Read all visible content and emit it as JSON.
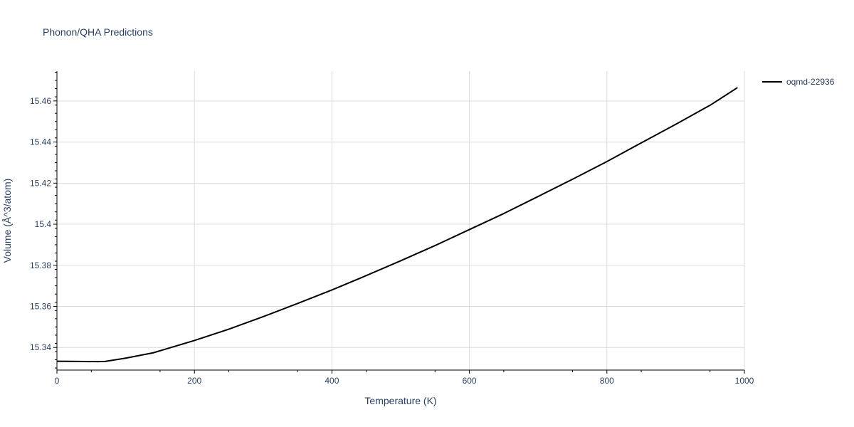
{
  "chart_data": {
    "type": "line",
    "title": "Phonon/QHA Predictions",
    "xlabel": "Temperature (K)",
    "ylabel": "Volume (Å^3/atom)",
    "xlim": [
      0,
      1000
    ],
    "ylim": [
      15.329,
      15.4745
    ],
    "xticks": [
      0,
      200,
      400,
      600,
      800,
      1000
    ],
    "xtick_labels": [
      "0",
      "200",
      "400",
      "600",
      "800",
      "1000"
    ],
    "yticks": [
      15.34,
      15.36,
      15.38,
      15.4,
      15.42,
      15.44,
      15.46
    ],
    "ytick_labels": [
      "15.34",
      "15.36",
      "15.38",
      "15.4",
      "15.42",
      "15.44",
      "15.46"
    ],
    "grid": true,
    "legend": "top-right",
    "series": [
      {
        "name": "oqmd-22936",
        "color": "#000000",
        "x": [
          0,
          30,
          60,
          70,
          100,
          140,
          200,
          250,
          300,
          350,
          400,
          450,
          500,
          550,
          600,
          650,
          700,
          750,
          800,
          850,
          900,
          950,
          990
        ],
        "y": [
          15.3333,
          15.3332,
          15.3331,
          15.3332,
          15.3348,
          15.3374,
          15.3434,
          15.3489,
          15.355,
          15.3614,
          15.368,
          15.375,
          15.3822,
          15.3896,
          15.3974,
          15.4052,
          15.4135,
          15.4219,
          15.4305,
          15.4396,
          15.4486,
          15.4579,
          15.4665
        ]
      }
    ]
  }
}
